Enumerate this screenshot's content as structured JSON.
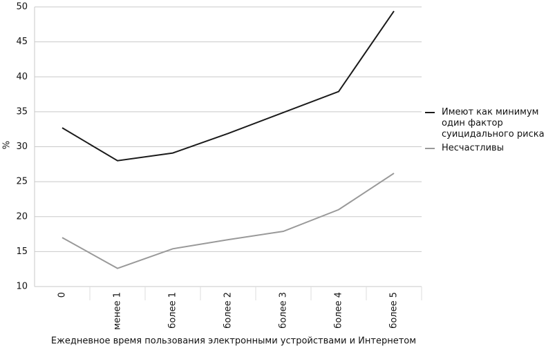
{
  "chart_data": {
    "type": "line",
    "x_label": "Ежедневное время пользования электронными устройствами и Интернетом",
    "y_label": "%",
    "categories": [
      "0",
      "менее 1",
      "более 1",
      "более 2",
      "более 3",
      "более 4",
      "более 5"
    ],
    "series": [
      {
        "name": "Имеют как минимум один фактор суицидального риска",
        "color": "#1a1a1a",
        "values": [
          32.7,
          28.0,
          29.1,
          31.9,
          34.9,
          37.9,
          49.4
        ]
      },
      {
        "name": "Несчастливы",
        "color": "#999999",
        "values": [
          17.0,
          12.6,
          15.4,
          16.7,
          17.9,
          21.0,
          26.2
        ]
      }
    ],
    "ylim": [
      10,
      50
    ],
    "yticks": [
      10,
      15,
      20,
      25,
      30,
      35,
      40,
      45,
      50
    ],
    "grid": true
  }
}
